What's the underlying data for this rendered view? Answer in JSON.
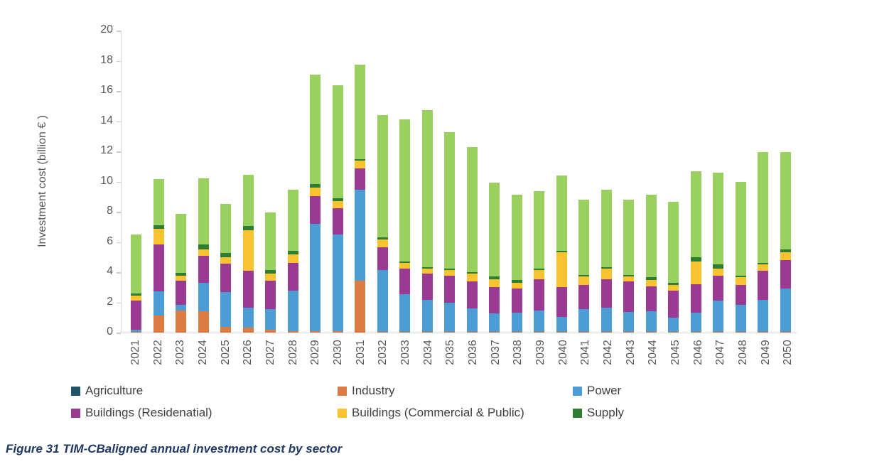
{
  "figure": {
    "caption": "Figure 31 TIM-CBaligned annual investment cost by sector"
  },
  "colors": {
    "axis_text": "#595959",
    "axis_line": "#d9d9d9",
    "legend_text": "#404040",
    "caption_text": "#1f3864",
    "background": "#ffffff"
  },
  "chart_data": {
    "type": "bar",
    "stacked": true,
    "title": "",
    "xlabel": "",
    "ylabel": "Investment cost (billion € )",
    "ylim": [
      0,
      20
    ],
    "ytick_step": 2,
    "yticks": [
      0,
      2,
      4,
      6,
      8,
      10,
      12,
      14,
      16,
      18,
      20
    ],
    "grid": false,
    "legend_position": "bottom",
    "categories": [
      "2021",
      "2022",
      "2023",
      "2024",
      "2025",
      "2026",
      "2027",
      "2028",
      "2029",
      "2030",
      "2031",
      "2032",
      "2033",
      "2034",
      "2035",
      "2036",
      "2037",
      "2038",
      "2039",
      "2040",
      "2041",
      "2042",
      "2043",
      "2044",
      "2045",
      "2046",
      "2047",
      "2048",
      "2049",
      "2050"
    ],
    "series": [
      {
        "name": "Agriculture",
        "color": "#1f5566",
        "in_legend": true,
        "values": [
          0,
          0,
          0,
          0,
          0,
          0,
          0,
          0,
          0,
          0,
          0,
          0,
          0,
          0,
          0,
          0,
          0,
          0,
          0,
          0,
          0,
          0,
          0,
          0,
          0,
          0,
          0,
          0,
          0,
          0
        ]
      },
      {
        "name": "Industry",
        "color": "#dd7c42",
        "in_legend": true,
        "values": [
          0.05,
          1.15,
          1.45,
          1.4,
          0.4,
          0.35,
          0.2,
          0.1,
          0.1,
          0.1,
          3.45,
          0.05,
          0.05,
          0.05,
          0.05,
          0.05,
          0.05,
          0.05,
          0.05,
          0.05,
          0.05,
          0.05,
          0.05,
          0.05,
          0.05,
          0.05,
          0.05,
          0.05,
          0.05,
          0.05
        ]
      },
      {
        "name": "Power",
        "color": "#4c9cd5",
        "in_legend": true,
        "values": [
          0.15,
          1.6,
          0.4,
          1.9,
          2.3,
          1.3,
          1.35,
          2.7,
          7.1,
          6.4,
          6.0,
          4.1,
          2.5,
          2.1,
          1.95,
          1.55,
          1.2,
          1.25,
          1.4,
          1.0,
          1.5,
          1.6,
          1.3,
          1.35,
          0.95,
          1.25,
          2.05,
          1.8,
          2.1,
          2.85
        ]
      },
      {
        "name": "Buildings (Residenatial)",
        "color": "#9a3a92",
        "in_legend": true,
        "values": [
          1.9,
          3.1,
          1.6,
          1.8,
          1.85,
          2.45,
          1.9,
          1.8,
          1.85,
          1.75,
          1.4,
          1.5,
          1.7,
          1.75,
          1.75,
          1.8,
          1.75,
          1.6,
          2.1,
          1.95,
          1.6,
          1.9,
          2.05,
          1.65,
          1.8,
          1.9,
          1.65,
          1.3,
          1.95,
          1.9
        ]
      },
      {
        "name": "Buildings (Commercial & Public)",
        "color": "#f8c32f",
        "in_legend": true,
        "values": [
          0.35,
          1.0,
          0.3,
          0.4,
          0.45,
          2.7,
          0.45,
          0.6,
          0.55,
          0.45,
          0.55,
          0.5,
          0.35,
          0.35,
          0.4,
          0.5,
          0.55,
          0.4,
          0.6,
          2.3,
          0.55,
          0.7,
          0.3,
          0.45,
          0.35,
          1.5,
          0.5,
          0.5,
          0.4,
          0.5
        ]
      },
      {
        "name": "Supply",
        "color": "#2e7d32",
        "in_legend": true,
        "values": [
          0.15,
          0.25,
          0.2,
          0.35,
          0.25,
          0.25,
          0.25,
          0.2,
          0.25,
          0.2,
          0.1,
          0.15,
          0.1,
          0.1,
          0.1,
          0.1,
          0.15,
          0.2,
          0.1,
          0.1,
          0.1,
          0.1,
          0.1,
          0.15,
          0.15,
          0.3,
          0.25,
          0.1,
          0.1,
          0.2
        ]
      },
      {
        "name": "unlabeled-light-green",
        "color": "#9ad05f",
        "in_legend": false,
        "values": [
          3.9,
          3.05,
          3.9,
          4.35,
          3.25,
          3.4,
          3.8,
          4.05,
          7.25,
          7.5,
          6.25,
          8.1,
          9.4,
          10.4,
          9.0,
          8.3,
          6.25,
          5.65,
          5.1,
          5.0,
          5.0,
          5.1,
          5.0,
          5.5,
          5.35,
          5.7,
          6.1,
          6.25,
          7.35,
          6.45
        ]
      }
    ]
  }
}
